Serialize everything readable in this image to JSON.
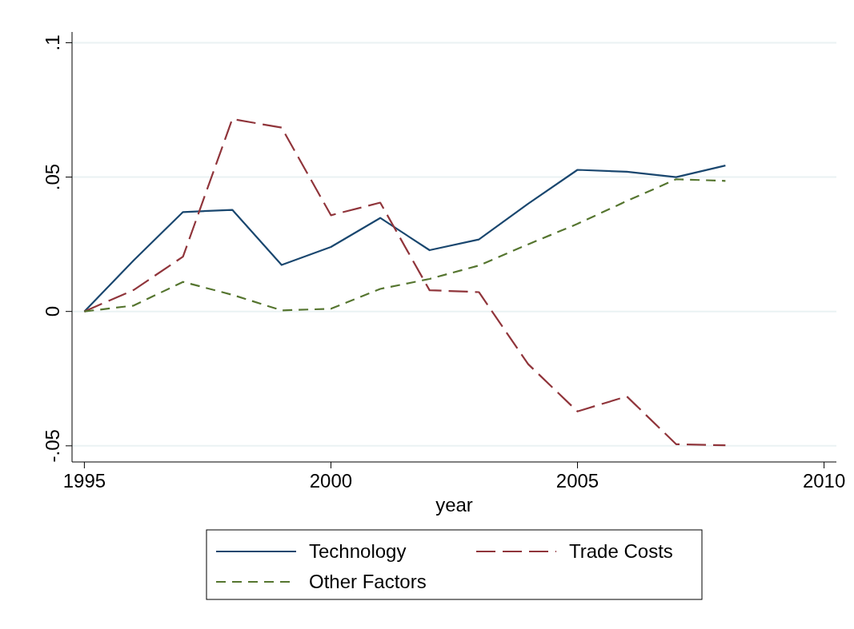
{
  "chart_data": {
    "type": "line",
    "xlabel": "year",
    "x": [
      1995,
      1996,
      1997,
      1998,
      1999,
      2000,
      2001,
      2002,
      2003,
      2004,
      2005,
      2006,
      2007,
      2008
    ],
    "series": [
      {
        "name": "Technology",
        "color": "#1a476f",
        "line_style": "solid",
        "values": [
          0,
          0.019,
          0.037,
          0.0378,
          0.0173,
          0.024,
          0.0348,
          0.0228,
          0.0268,
          0.0401,
          0.0527,
          0.052,
          0.05,
          0.0543
        ]
      },
      {
        "name": "Trade Costs",
        "color": "#90353b",
        "line_style": "dashed",
        "values": [
          0,
          0.008,
          0.0204,
          0.0716,
          0.0684,
          0.0358,
          0.0405,
          0.0079,
          0.0072,
          -0.0196,
          -0.0372,
          -0.0316,
          -0.0494,
          -0.0498
        ]
      },
      {
        "name": "Other Factors",
        "color": "#55752f",
        "line_style": "dashed",
        "values": [
          0,
          0.0022,
          0.011,
          0.0062,
          0.0004,
          0.001,
          0.0084,
          0.0121,
          0.0171,
          0.025,
          0.0326,
          0.0411,
          0.0492,
          0.0486
        ]
      }
    ],
    "xlim": [
      1994.75,
      2010.25
    ],
    "xticks": [
      1995,
      2000,
      2005,
      2010
    ],
    "ylim": [
      -0.056,
      0.104
    ],
    "yticks": [
      {
        "value": -0.05,
        "label": "-.05"
      },
      {
        "value": 0,
        "label": "0"
      },
      {
        "value": 0.05,
        "label": ".05"
      },
      {
        "value": 0.1,
        "label": ".1"
      }
    ],
    "grid": "y",
    "legend": "bottom",
    "marker": "none"
  }
}
